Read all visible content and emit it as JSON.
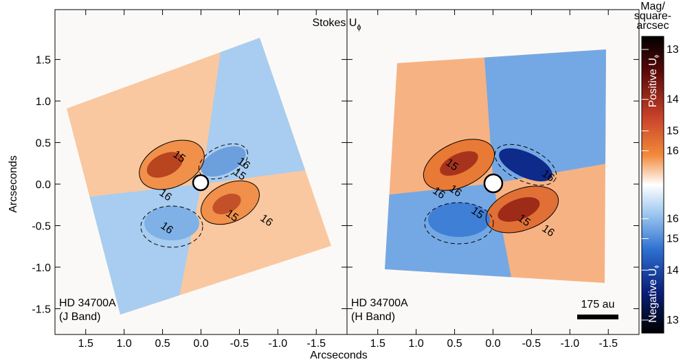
{
  "title": "Stokes U",
  "title_subscript": "ϕ",
  "x_label": "Arcseconds",
  "y_label": "Arcseconds",
  "chart_data": [
    {
      "type": "image",
      "annotation": [
        "HD 34700A",
        "(J Band)"
      ],
      "xlim": [
        1.9,
        -1.9
      ],
      "ylim": [
        -1.81,
        2.1
      ],
      "xticks": [
        1.5,
        {
          "value": 1,
          "label": "1.0"
        },
        0.5,
        {
          "value": 0,
          "label": "0.0"
        },
        -0.5,
        {
          "value": -1,
          "label": "-1.0"
        },
        -1.5
      ],
      "yticks": [
        -1.5,
        {
          "value": -1,
          "label": "-1.0"
        },
        -0.5,
        {
          "value": 0,
          "label": "0.0"
        },
        0.5,
        {
          "value": 1,
          "label": "1.0"
        },
        1.5
      ],
      "ytick_labels": true,
      "contour_labels": [
        "15",
        "16",
        "15",
        "16",
        "15",
        "16",
        "16"
      ]
    },
    {
      "type": "image",
      "annotation": [
        "HD 34700A",
        "(H Band)"
      ],
      "scale_bar": "175 au",
      "xlim": [
        1.9,
        -1.9
      ],
      "ylim": [
        -1.81,
        2.1
      ],
      "xticks": [
        1.5,
        {
          "value": 1,
          "label": "1.0"
        },
        0.5,
        {
          "value": 0,
          "label": "0.0"
        },
        -0.5,
        {
          "value": -1,
          "label": "-1.0"
        },
        -1.5
      ],
      "yticks": [
        -1.5,
        -1,
        -0.5,
        0,
        0.5,
        1,
        1.5
      ],
      "ytick_labels": false,
      "contour_labels": [
        "15",
        "16",
        "15",
        "16",
        "15",
        "16",
        "16"
      ]
    }
  ],
  "colorbar": {
    "title": [
      "Mag/",
      "square-",
      "arcsec"
    ],
    "positive_label": "Positive U",
    "negative_label": "Negative U",
    "label_subscript": "ϕ",
    "lim": 12.8,
    "positive_ticks": [
      13,
      14,
      15,
      16
    ],
    "negative_ticks": [
      16,
      15,
      14,
      13
    ]
  }
}
